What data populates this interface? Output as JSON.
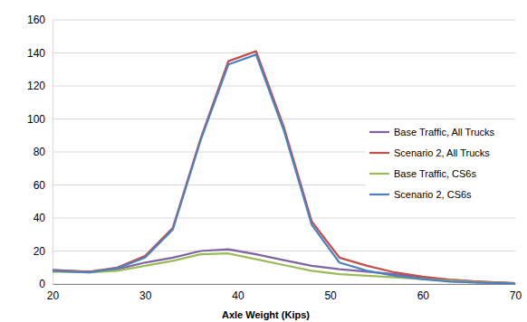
{
  "chart_data": {
    "type": "line",
    "x_label": "Axle Weight (Kips)",
    "x": [
      20,
      24,
      27,
      30,
      33,
      36,
      39,
      42,
      45,
      48,
      51,
      54,
      57,
      60,
      63,
      66,
      70
    ],
    "series": [
      {
        "name": "Base Traffic, All Trucks",
        "color": "#8064a2",
        "values": [
          8,
          7.5,
          9,
          13,
          16,
          20,
          21,
          18,
          14.5,
          11,
          9,
          7.5,
          6,
          4,
          2.5,
          1.5,
          0.5
        ]
      },
      {
        "name": "Scenario 2, All Trucks",
        "color": "#c0504d",
        "values": [
          8.5,
          7.5,
          10,
          17,
          34,
          88,
          135,
          141,
          95,
          38,
          16,
          11,
          7,
          4.5,
          2.5,
          1.5,
          0.5
        ]
      },
      {
        "name": "Base Traffic, CS6s",
        "color": "#9bbb59",
        "values": [
          7.5,
          7,
          8,
          11,
          14,
          18,
          18.5,
          15,
          11.5,
          8,
          6,
          5,
          4,
          3,
          2,
          1,
          0.3
        ]
      },
      {
        "name": "Scenario 2, CS6s",
        "color": "#4f81bd",
        "values": [
          8,
          7,
          9.5,
          16,
          33,
          87,
          133,
          139,
          93,
          36,
          13,
          8,
          5,
          3,
          1.5,
          0.8,
          0.3
        ]
      }
    ],
    "xlim": [
      20,
      70
    ],
    "xticks": [
      20,
      30,
      40,
      50,
      60,
      70
    ],
    "ylim": [
      0,
      160
    ],
    "yticks": [
      0,
      20,
      40,
      60,
      80,
      100,
      120,
      140,
      160
    ],
    "grid": true,
    "legend": "right"
  }
}
